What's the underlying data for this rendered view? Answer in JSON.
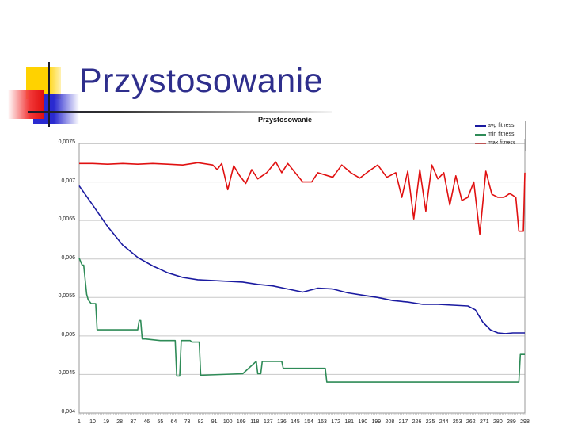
{
  "slide": {
    "title": "Przystosowanie"
  },
  "chart_data": {
    "type": "line",
    "title": "Przystosowanie",
    "xlabel": "",
    "ylabel": "",
    "ylim": [
      0.004,
      0.0075
    ],
    "xlim": [
      1,
      298
    ],
    "grid": true,
    "legend_position": "top-right",
    "y_ticks": [
      "0,0075",
      "0,007",
      "0,0065",
      "0,006",
      "0,0055",
      "0,005",
      "0,0045",
      "0,004"
    ],
    "x_ticks": [
      "1",
      "10",
      "19",
      "28",
      "37",
      "46",
      "55",
      "64",
      "73",
      "82",
      "91",
      "100",
      "109",
      "118",
      "127",
      "136",
      "145",
      "154",
      "163",
      "172",
      "181",
      "190",
      "199",
      "208",
      "217",
      "226",
      "235",
      "244",
      "253",
      "262",
      "271",
      "280",
      "289",
      "298"
    ],
    "series": [
      {
        "name": "avg fitness",
        "color": "#1a1aa0",
        "x": [
          1,
          10,
          20,
          30,
          40,
          50,
          60,
          70,
          80,
          90,
          100,
          110,
          120,
          130,
          140,
          150,
          160,
          170,
          180,
          190,
          200,
          210,
          220,
          230,
          240,
          250,
          260,
          265,
          270,
          275,
          280,
          285,
          290,
          298
        ],
        "values": [
          0.00695,
          0.0067,
          0.00642,
          0.00618,
          0.00602,
          0.00591,
          0.00582,
          0.00576,
          0.00573,
          0.00572,
          0.00571,
          0.0057,
          0.00567,
          0.00565,
          0.00561,
          0.00557,
          0.00562,
          0.00561,
          0.00556,
          0.00553,
          0.0055,
          0.00546,
          0.00544,
          0.00541,
          0.00541,
          0.0054,
          0.00539,
          0.00534,
          0.00518,
          0.00508,
          0.00504,
          0.00503,
          0.00504,
          0.00504
        ]
      },
      {
        "name": "min fitness",
        "color": "#2e8b57",
        "x": [
          1,
          3,
          4,
          6,
          7,
          9,
          12,
          13,
          18,
          40,
          41,
          42,
          43,
          45,
          55,
          65,
          66,
          68,
          69,
          75,
          76,
          81,
          82,
          110,
          119,
          120,
          122,
          123,
          136,
          137,
          165,
          166,
          294,
          295,
          298
        ],
        "values": [
          0.00601,
          0.00592,
          0.00592,
          0.00554,
          0.00547,
          0.00542,
          0.00542,
          0.00508,
          0.00508,
          0.00508,
          0.0052,
          0.0052,
          0.00496,
          0.00496,
          0.00494,
          0.00494,
          0.00448,
          0.00448,
          0.00494,
          0.00494,
          0.00492,
          0.00492,
          0.00449,
          0.00451,
          0.00467,
          0.00451,
          0.00451,
          0.00467,
          0.00467,
          0.00458,
          0.00458,
          0.0044,
          0.0044,
          0.00476,
          0.00476
        ]
      },
      {
        "name": "max fitness",
        "color": "#e01010",
        "x": [
          1,
          10,
          20,
          30,
          40,
          50,
          60,
          70,
          80,
          90,
          93,
          96,
          100,
          104,
          108,
          112,
          116,
          120,
          126,
          132,
          136,
          140,
          150,
          156,
          160,
          170,
          176,
          182,
          188,
          194,
          200,
          206,
          212,
          216,
          220,
          224,
          228,
          232,
          236,
          240,
          244,
          248,
          252,
          256,
          260,
          264,
          268,
          272,
          276,
          280,
          284,
          288,
          292,
          294,
          297,
          298
        ],
        "values": [
          0.00724,
          0.00724,
          0.00723,
          0.00724,
          0.00723,
          0.00724,
          0.00723,
          0.00722,
          0.00725,
          0.00722,
          0.00716,
          0.00724,
          0.0069,
          0.00721,
          0.00708,
          0.00698,
          0.00716,
          0.00704,
          0.00712,
          0.00726,
          0.00712,
          0.00724,
          0.007,
          0.007,
          0.00712,
          0.00706,
          0.00722,
          0.00712,
          0.00705,
          0.00714,
          0.00722,
          0.00706,
          0.00712,
          0.0068,
          0.00714,
          0.00652,
          0.00716,
          0.00662,
          0.00722,
          0.00704,
          0.00712,
          0.0067,
          0.00708,
          0.00676,
          0.0068,
          0.007,
          0.00632,
          0.00714,
          0.00684,
          0.0068,
          0.0068,
          0.00685,
          0.0068,
          0.00636,
          0.00636,
          0.00712
        ]
      }
    ]
  }
}
